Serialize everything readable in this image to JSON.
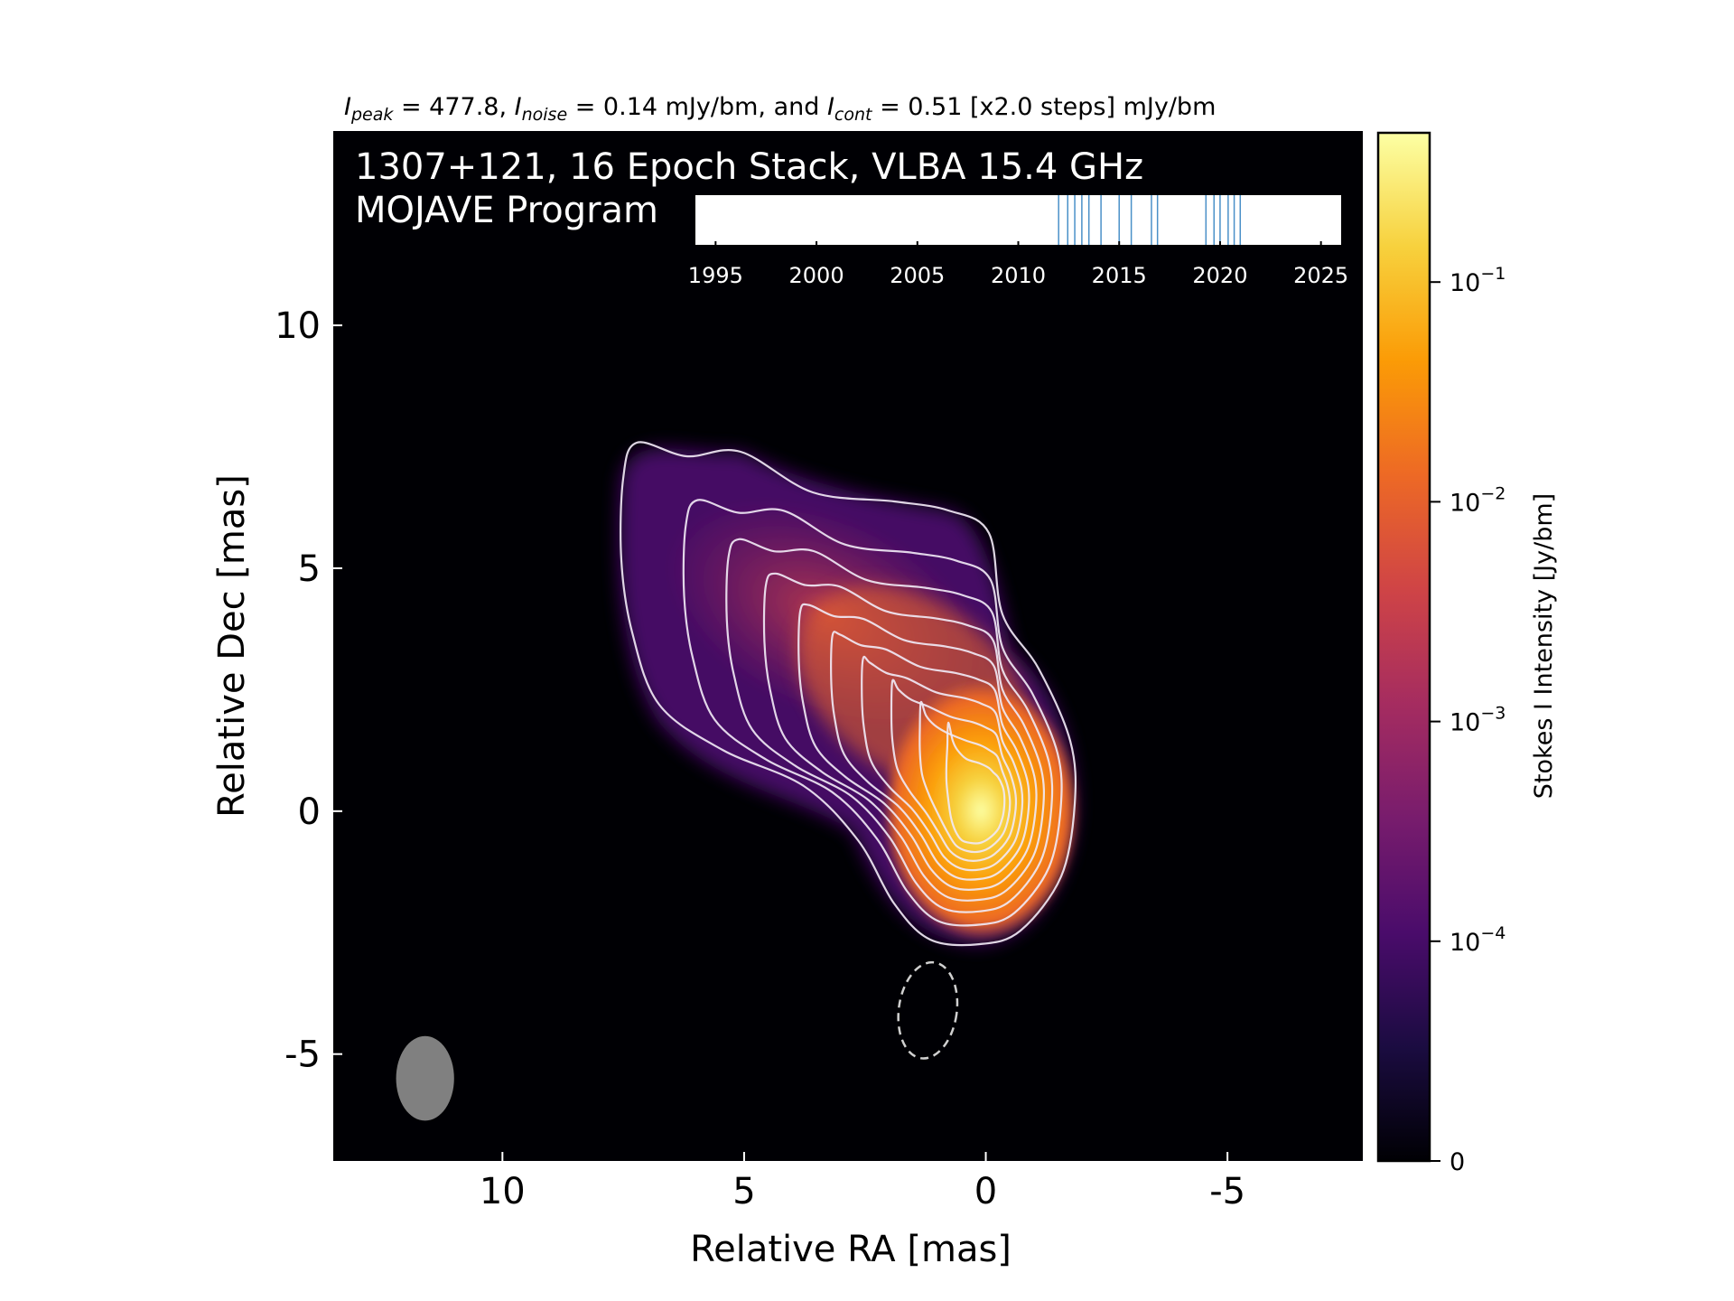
{
  "chart_data": {
    "type": "heatmap",
    "stats_line": {
      "peak_sym": "I",
      "peak_sub": "peak",
      "peak_value": " = 477.8, ",
      "noise_sym": "I",
      "noise_sub": "noise",
      "noise_value": " = 0.14 mJy/bm, and ",
      "cont_sym": "I",
      "cont_sub": "cont",
      "cont_value": " = 0.51 [x2.0 steps] mJy/bm"
    },
    "title_line1": "1307+121, 16 Epoch Stack, VLBA 15.4 GHz",
    "title_line2": "MOJAVE Program",
    "xlabel": "Relative RA [mas]",
    "ylabel": "Relative Dec [mas]",
    "xlim": [
      13.5,
      -7.8
    ],
    "ylim": [
      -7.2,
      14.0
    ],
    "x_ticks": [
      10,
      5,
      0,
      -5
    ],
    "x_tick_labels": [
      "10",
      "5",
      "0",
      "-5"
    ],
    "y_ticks": [
      10,
      5,
      0,
      -5
    ],
    "y_tick_labels": [
      "10",
      "5",
      "0",
      "-5"
    ],
    "image_background": "#000004",
    "contour_color": "#f0e8f4",
    "negative_contour_color": "#d0d0d0",
    "contour_levels_mjy": [
      0.51,
      1.02,
      2.04,
      4.08,
      8.16,
      16.32,
      32.64,
      65.28,
      130.56,
      261.12
    ],
    "peak_position": [
      0.1,
      0.2
    ],
    "beam": {
      "center": [
        11.6,
        -5.5
      ],
      "major": 1.75,
      "minor": 1.2,
      "pa_deg": 0,
      "color": "#808080"
    },
    "negative_contour": {
      "center": [
        1.2,
        -4.1
      ],
      "major": 2.0,
      "minor": 1.2
    },
    "epoch_timeline": {
      "range": [
        1994,
        2026
      ],
      "ticks": [
        1995,
        2000,
        2005,
        2010,
        2015,
        2020,
        2025
      ],
      "tick_labels": [
        "1995",
        "2000",
        "2005",
        "2010",
        "2015",
        "2020",
        "2025"
      ],
      "epochs": [
        2012.0,
        2012.45,
        2012.8,
        2013.15,
        2013.5,
        2014.1,
        2015.0,
        2015.6,
        2016.6,
        2016.9,
        2019.3,
        2019.7,
        2020.0,
        2020.4,
        2020.7,
        2021.0
      ],
      "epoch_color": "#4a90c8"
    },
    "colorbar": {
      "label": "Stokes I Intensity [Jy/bm]",
      "scale": "log",
      "range": [
        0,
        0.4778
      ],
      "ticks": [
        {
          "value": 0.1,
          "base": "10",
          "exp": "−1"
        },
        {
          "value": 0.01,
          "base": "10",
          "exp": "−2"
        },
        {
          "value": 0.001,
          "base": "10",
          "exp": "−3"
        },
        {
          "value": 0.0001,
          "base": "10",
          "exp": "−4"
        },
        {
          "value": 0,
          "base": "0",
          "exp": ""
        }
      ],
      "colormap": "inferno",
      "stops": [
        "#000004",
        "#1b0c41",
        "#4a0c6b",
        "#781c6d",
        "#a52c60",
        "#cf4446",
        "#ed6925",
        "#fb9b06",
        "#f7d13d",
        "#fcffa4"
      ]
    }
  }
}
